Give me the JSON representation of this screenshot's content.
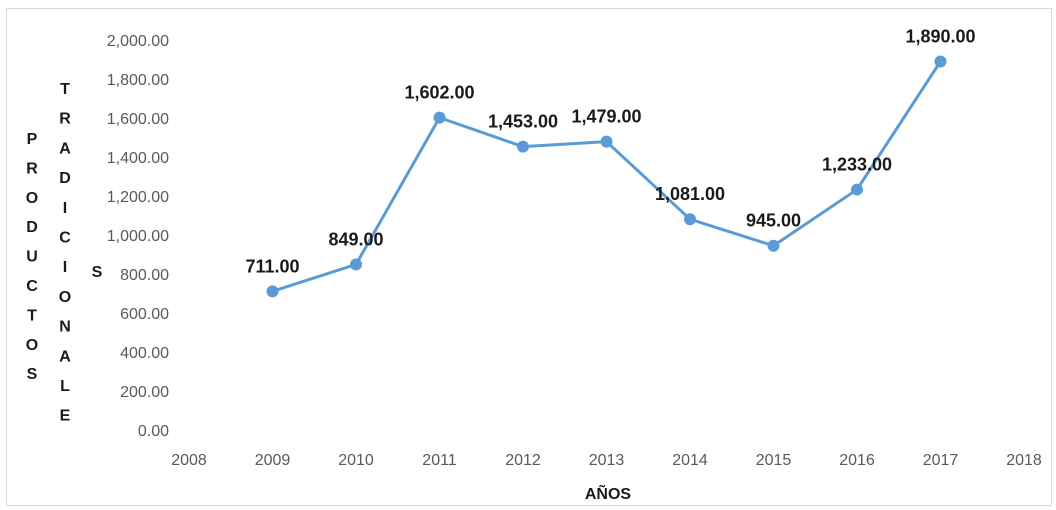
{
  "chart_data": {
    "type": "line",
    "x": [
      2009,
      2010,
      2011,
      2012,
      2013,
      2014,
      2015,
      2016,
      2017
    ],
    "series": [
      {
        "values": [
          711,
          849,
          1602,
          1453,
          1479,
          1081,
          945,
          1233,
          1890
        ],
        "data_labels": [
          "711.00",
          "849.00",
          "1,602.00",
          "1,453.00",
          "1,479.00",
          "1,081.00",
          "945.00",
          "1,233.00",
          "1,890.00"
        ],
        "color": "#5b9bd5"
      }
    ],
    "xlabel": "AÑOS",
    "ylabel_line1": "PRODUCTOS",
    "ylabel_line2": "TRADICIONALES",
    "xlim": [
      2008,
      2018
    ],
    "ylim": [
      0,
      2000
    ],
    "x_ticks": [
      "2008",
      "2009",
      "2010",
      "2011",
      "2012",
      "2013",
      "2014",
      "2015",
      "2016",
      "2017",
      "2018"
    ],
    "y_ticks": [
      "0.00",
      "200.00",
      "400.00",
      "600.00",
      "800.00",
      "1,000.00",
      "1,200.00",
      "1,400.00",
      "1,600.00",
      "1,800.00",
      "2,000.00"
    ],
    "grid": false,
    "legend": "none"
  }
}
